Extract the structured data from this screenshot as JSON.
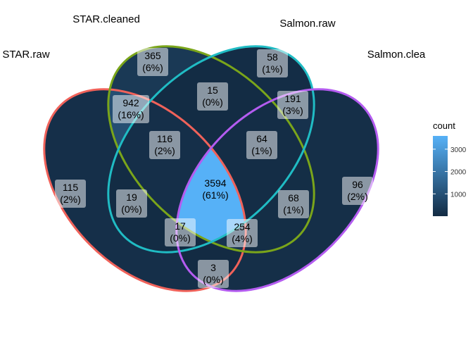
{
  "chart_data": {
    "type": "venn",
    "sets": [
      {
        "name": "STAR.raw",
        "color": "#f0625a"
      },
      {
        "name": "STAR.cleaned",
        "color": "#7aa51a"
      },
      {
        "name": "Salmon.raw",
        "color": "#20bcc4"
      },
      {
        "name": "Salmon.clea",
        "color": "#b45cf0"
      }
    ],
    "regions": [
      {
        "sets": [
          "STAR.raw"
        ],
        "count": 115,
        "percent": "2%"
      },
      {
        "sets": [
          "STAR.cleaned"
        ],
        "count": 365,
        "percent": "6%"
      },
      {
        "sets": [
          "Salmon.raw"
        ],
        "count": 58,
        "percent": "1%"
      },
      {
        "sets": [
          "Salmon.clea"
        ],
        "count": 96,
        "percent": "2%"
      },
      {
        "sets": [
          "STAR.raw",
          "STAR.cleaned"
        ],
        "count": 942,
        "percent": "16%"
      },
      {
        "sets": [
          "STAR.cleaned",
          "Salmon.raw"
        ],
        "count": 15,
        "percent": "0%"
      },
      {
        "sets": [
          "Salmon.raw",
          "Salmon.clea"
        ],
        "count": 191,
        "percent": "3%"
      },
      {
        "sets": [
          "STAR.raw",
          "STAR.cleaned",
          "Salmon.raw"
        ],
        "count": 116,
        "percent": "2%"
      },
      {
        "sets": [
          "STAR.cleaned",
          "Salmon.raw",
          "Salmon.clea"
        ],
        "count": 64,
        "percent": "1%"
      },
      {
        "sets": [
          "STAR.raw",
          "STAR.cleaned",
          "Salmon.raw",
          "Salmon.clea"
        ],
        "count": 3594,
        "percent": "61%"
      },
      {
        "sets": [
          "STAR.raw",
          "Salmon.raw"
        ],
        "count": 19,
        "percent": "0%"
      },
      {
        "sets": [
          "STAR.cleaned",
          "Salmon.clea"
        ],
        "count": 68,
        "percent": "1%"
      },
      {
        "sets": [
          "STAR.raw",
          "Salmon.raw",
          "Salmon.clea"
        ],
        "count": 17,
        "percent": "0%"
      },
      {
        "sets": [
          "STAR.raw",
          "STAR.cleaned",
          "Salmon.clea"
        ],
        "count": 254,
        "percent": "4%"
      },
      {
        "sets": [
          "STAR.raw",
          "Salmon.clea"
        ],
        "count": 3,
        "percent": "0%"
      }
    ],
    "legend": {
      "title": "count",
      "ticks": [
        1000,
        2000,
        3000
      ],
      "range": [
        0,
        3594
      ],
      "low_color": "#132b43",
      "high_color": "#56b1f7",
      "placement": "right"
    }
  }
}
